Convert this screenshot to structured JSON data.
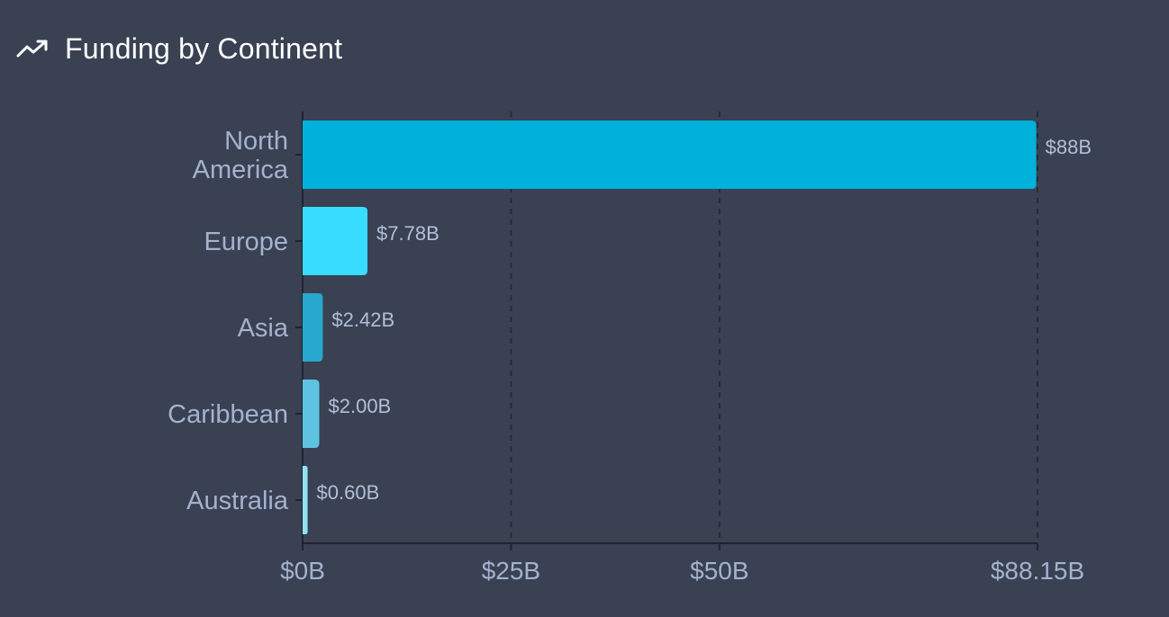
{
  "header": {
    "title": "Funding by Continent",
    "icon": "trending-up-icon"
  },
  "colors": {
    "background": "#394152",
    "axis": "#1f2430",
    "grid": "#262b37",
    "label": "#a3b2cf"
  },
  "chart_data": {
    "type": "bar",
    "orientation": "horizontal",
    "title": "Funding by Continent",
    "xlabel": "",
    "ylabel": "",
    "categories": [
      "North America",
      "Europe",
      "Asia",
      "Caribbean",
      "Australia"
    ],
    "category_lines": [
      [
        "North",
        "America"
      ],
      [
        "Europe"
      ],
      [
        "Asia"
      ],
      [
        "Caribbean"
      ],
      [
        "Australia"
      ]
    ],
    "values": [
      88,
      7.78,
      2.42,
      2.0,
      0.6
    ],
    "value_labels": [
      "$88B",
      "$7.78B",
      "$2.42B",
      "$2.00B",
      "$0.60B"
    ],
    "colors": [
      "#00b1dc",
      "#37dcff",
      "#27a8cc",
      "#5ec3e0",
      "#92e2f2"
    ],
    "xlim": [
      0,
      88.15
    ],
    "xticks": [
      0,
      25,
      50,
      88.15
    ],
    "xtick_labels": [
      "$0B",
      "$25B",
      "$50B",
      "$88.15B"
    ],
    "grid": "vertical dashed",
    "legend": "none"
  }
}
